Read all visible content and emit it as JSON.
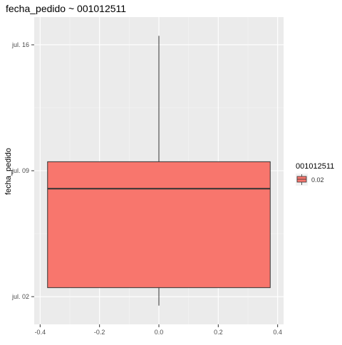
{
  "chart_data": {
    "type": "boxplot",
    "title": "fecha_pedido ~ 001012511",
    "xlabel": "",
    "ylabel": "fecha_pedido",
    "x_ticks": [
      -0.4,
      -0.2,
      0.0,
      0.2,
      0.4
    ],
    "x_tick_labels": [
      "-0.4",
      "-0.2",
      "0.0",
      "0.2",
      "0.4"
    ],
    "xlim": [
      -0.42,
      0.42
    ],
    "y_ticks": [
      "2024-07-02",
      "2024-07-09",
      "2024-07-16"
    ],
    "y_tick_labels": [
      "jul. 02",
      "jul. 09",
      "jul. 16"
    ],
    "ylim": [
      "2024-07-00 11:00",
      "2024-07-17 13:00"
    ],
    "grid": true,
    "legend": {
      "title": "001012511",
      "entries": [
        "0.02"
      ],
      "position": "right"
    },
    "series": [
      {
        "group": "0.02",
        "x_center": 0.0,
        "box_width": 0.75,
        "color": "#F8766D",
        "min": "2024-07-01 12:00",
        "q1": "2024-07-02 12:00",
        "median": "2024-07-08 00:00",
        "q3": "2024-07-09 12:00",
        "max": "2024-07-16 12:00"
      }
    ]
  }
}
